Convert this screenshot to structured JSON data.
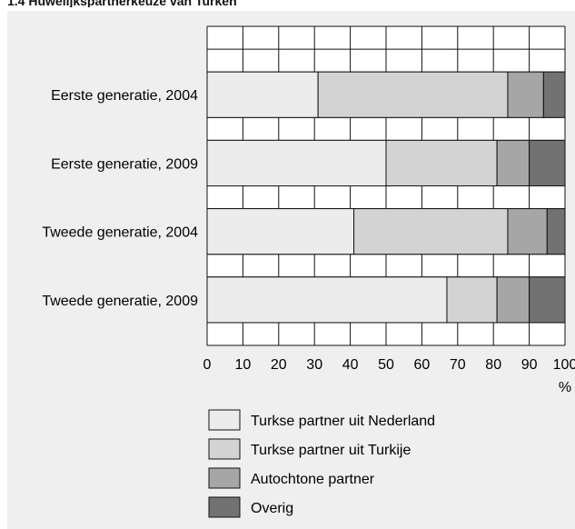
{
  "title": "1.4 Huwelijkspartnerkeuze van Turken",
  "chart_data": {
    "type": "bar",
    "orientation": "horizontal",
    "stacked": true,
    "categories": [
      "Eerste generatie, 2004",
      "Eerste generatie, 2009",
      "Tweede generatie, 2004",
      "Tweede generatie, 2009"
    ],
    "series": [
      {
        "name": "Turkse partner uit Nederland",
        "color": "#ececec",
        "values": [
          31,
          50,
          41,
          67
        ]
      },
      {
        "name": "Turkse partner uit Turkije",
        "color": "#d3d3d3",
        "values": [
          53,
          31,
          43,
          14
        ]
      },
      {
        "name": "Autochtone partner",
        "color": "#a6a6a6",
        "values": [
          10,
          9,
          11,
          9
        ]
      },
      {
        "name": "Overig",
        "color": "#727272",
        "values": [
          6,
          10,
          5,
          10
        ]
      }
    ],
    "x_ticks": [
      "0",
      "10",
      "20",
      "30",
      "40",
      "50",
      "60",
      "70",
      "80",
      "90",
      "100"
    ],
    "x_unit": "%",
    "xlim": [
      0,
      100
    ],
    "grid": true,
    "legend": "bottom"
  }
}
